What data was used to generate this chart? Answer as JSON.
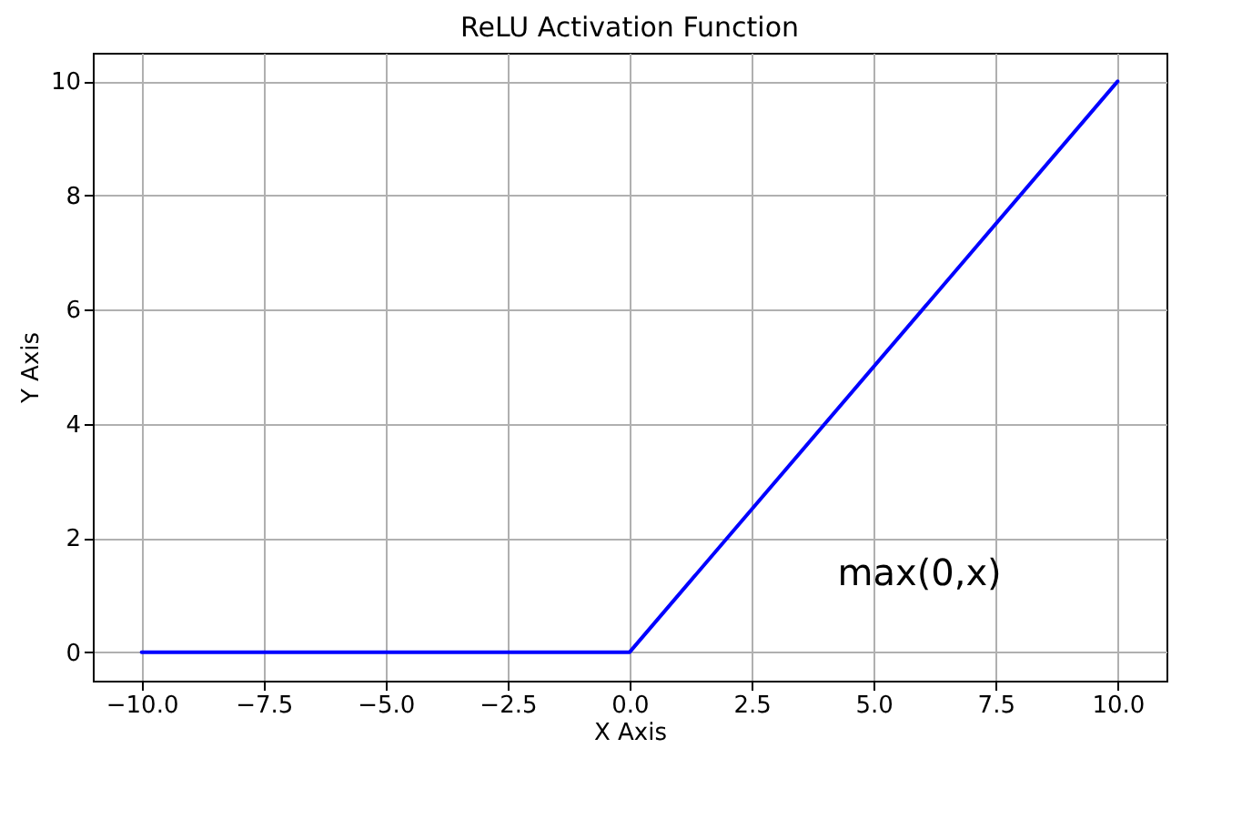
{
  "chart_data": {
    "type": "line",
    "title": "ReLU Activation Function",
    "xlabel": "X Axis",
    "ylabel": "Y Axis",
    "x": [
      -10,
      0,
      10
    ],
    "series": [
      {
        "color": "#0000ff",
        "values": [
          0,
          0,
          10
        ]
      }
    ],
    "xlim": [
      -11,
      11
    ],
    "ylim": [
      -0.5,
      10.5
    ],
    "xticks": [
      {
        "value": -10,
        "label": "−10.0"
      },
      {
        "value": -7.5,
        "label": "−7.5"
      },
      {
        "value": -5,
        "label": "−5.0"
      },
      {
        "value": -2.5,
        "label": "−2.5"
      },
      {
        "value": 0,
        "label": "0.0"
      },
      {
        "value": 2.5,
        "label": "2.5"
      },
      {
        "value": 5,
        "label": "5.0"
      },
      {
        "value": 7.5,
        "label": "7.5"
      },
      {
        "value": 10,
        "label": "10.0"
      }
    ],
    "yticks": [
      0,
      2,
      4,
      6,
      8,
      10
    ],
    "grid": true,
    "marker": "none",
    "line_style": "solid",
    "annotations": [
      "max(0,x)"
    ]
  }
}
